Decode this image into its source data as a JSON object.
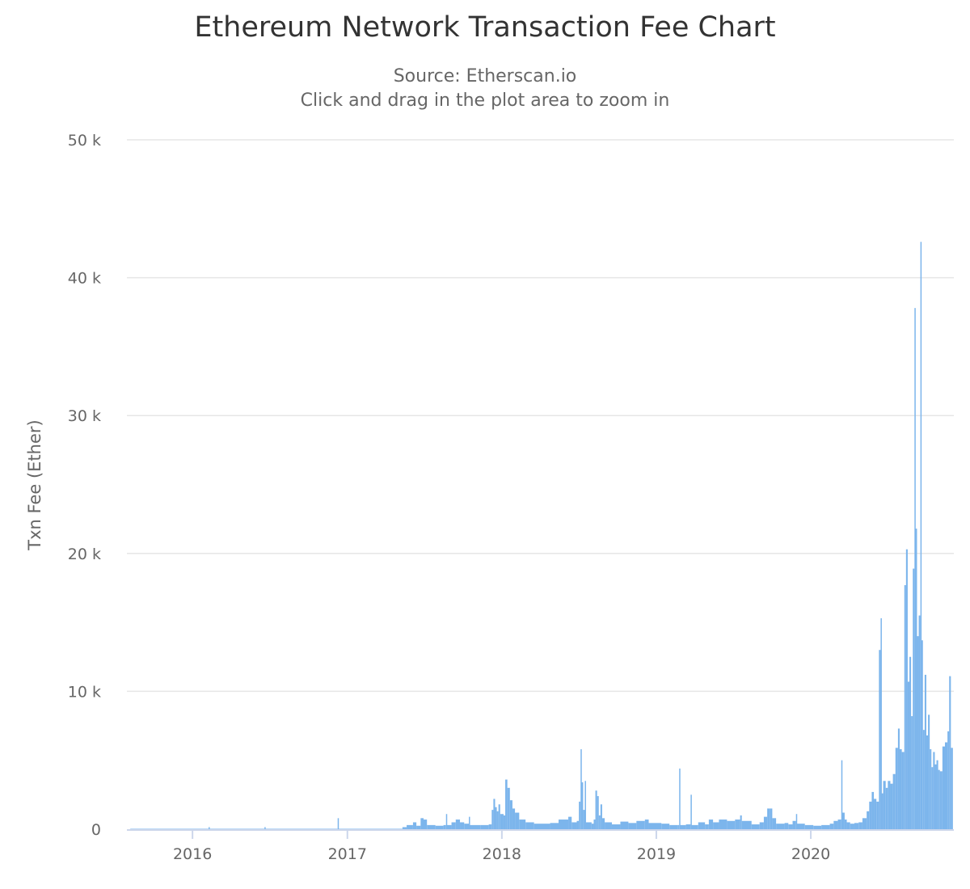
{
  "chart_data": {
    "type": "bar",
    "title": "Ethereum Network Transaction Fee Chart",
    "subtitle": "Source: Etherscan.io",
    "subtitle2": "Click and drag in the plot area to zoom in",
    "xlabel": "",
    "ylabel": "Txn Fee (Ether)",
    "xlim": [
      "2015-07-30",
      "2020-12-04"
    ],
    "ylim": [
      0,
      50000
    ],
    "x_ticks": [
      {
        "label": "2016",
        "date": "2016-01-01"
      },
      {
        "label": "2017",
        "date": "2017-01-01"
      },
      {
        "label": "2018",
        "date": "2018-01-01"
      },
      {
        "label": "2019",
        "date": "2019-01-01"
      },
      {
        "label": "2020",
        "date": "2020-01-01"
      }
    ],
    "y_ticks": [
      {
        "label": "0",
        "value": 0
      },
      {
        "label": "10 k",
        "value": 10000
      },
      {
        "label": "20 k",
        "value": 20000
      },
      {
        "label": "30 k",
        "value": 30000
      },
      {
        "label": "40 k",
        "value": 40000
      },
      {
        "label": "50 k",
        "value": 50000
      }
    ],
    "grid": true,
    "legend": "none",
    "color": "#7cb5ec",
    "points": [
      [
        "2015-08-07",
        30
      ],
      [
        "2016-02-08",
        150
      ],
      [
        "2016-02-10",
        30
      ],
      [
        "2016-06-19",
        150
      ],
      [
        "2016-06-21",
        30
      ],
      [
        "2016-12-09",
        800
      ],
      [
        "2016-12-11",
        30
      ],
      [
        "2017-05-11",
        150
      ],
      [
        "2017-05-21",
        300
      ],
      [
        "2017-06-05",
        500
      ],
      [
        "2017-06-13",
        250
      ],
      [
        "2017-06-23",
        800
      ],
      [
        "2017-06-30",
        700
      ],
      [
        "2017-07-08",
        300
      ],
      [
        "2017-07-28",
        250
      ],
      [
        "2017-08-16",
        300
      ],
      [
        "2017-08-22",
        1100
      ],
      [
        "2017-08-24",
        300
      ],
      [
        "2017-09-04",
        500
      ],
      [
        "2017-09-14",
        700
      ],
      [
        "2017-09-24",
        500
      ],
      [
        "2017-10-04",
        400
      ],
      [
        "2017-10-15",
        900
      ],
      [
        "2017-10-17",
        300
      ],
      [
        "2017-11-11",
        300
      ],
      [
        "2017-12-01",
        350
      ],
      [
        "2017-12-08",
        1400
      ],
      [
        "2017-12-12",
        2200
      ],
      [
        "2017-12-16",
        1600
      ],
      [
        "2017-12-20",
        1300
      ],
      [
        "2017-12-24",
        1800
      ],
      [
        "2017-12-28",
        1100
      ],
      [
        "2018-01-05",
        1000
      ],
      [
        "2018-01-09",
        3600
      ],
      [
        "2018-01-14",
        3000
      ],
      [
        "2018-01-20",
        2100
      ],
      [
        "2018-01-26",
        1500
      ],
      [
        "2018-02-01",
        1200
      ],
      [
        "2018-02-11",
        700
      ],
      [
        "2018-02-26",
        500
      ],
      [
        "2018-03-18",
        400
      ],
      [
        "2018-04-25",
        450
      ],
      [
        "2018-05-15",
        700
      ],
      [
        "2018-06-07",
        900
      ],
      [
        "2018-06-15",
        500
      ],
      [
        "2018-06-27",
        600
      ],
      [
        "2018-07-02",
        2000
      ],
      [
        "2018-07-06",
        5800
      ],
      [
        "2018-07-08",
        3400
      ],
      [
        "2018-07-12",
        1400
      ],
      [
        "2018-07-16",
        3500
      ],
      [
        "2018-07-18",
        500
      ],
      [
        "2018-08-01",
        400
      ],
      [
        "2018-08-06",
        700
      ],
      [
        "2018-08-10",
        2800
      ],
      [
        "2018-08-14",
        2400
      ],
      [
        "2018-08-18",
        1000
      ],
      [
        "2018-08-22",
        1800
      ],
      [
        "2018-08-26",
        800
      ],
      [
        "2018-09-01",
        500
      ],
      [
        "2018-09-18",
        350
      ],
      [
        "2018-10-08",
        550
      ],
      [
        "2018-10-27",
        450
      ],
      [
        "2018-11-15",
        600
      ],
      [
        "2018-12-05",
        700
      ],
      [
        "2018-12-14",
        450
      ],
      [
        "2019-01-13",
        400
      ],
      [
        "2019-02-01",
        300
      ],
      [
        "2019-02-20",
        300
      ],
      [
        "2019-02-24",
        4400
      ],
      [
        "2019-02-26",
        300
      ],
      [
        "2019-03-12",
        350
      ],
      [
        "2019-03-23",
        2500
      ],
      [
        "2019-03-25",
        300
      ],
      [
        "2019-04-10",
        500
      ],
      [
        "2019-04-26",
        350
      ],
      [
        "2019-05-05",
        700
      ],
      [
        "2019-05-15",
        500
      ],
      [
        "2019-05-29",
        700
      ],
      [
        "2019-06-17",
        600
      ],
      [
        "2019-07-06",
        700
      ],
      [
        "2019-07-18",
        1000
      ],
      [
        "2019-07-22",
        600
      ],
      [
        "2019-08-14",
        350
      ],
      [
        "2019-09-02",
        500
      ],
      [
        "2019-09-12",
        900
      ],
      [
        "2019-09-20",
        1500
      ],
      [
        "2019-09-26",
        1500
      ],
      [
        "2019-10-02",
        800
      ],
      [
        "2019-10-11",
        400
      ],
      [
        "2019-10-31",
        450
      ],
      [
        "2019-11-09",
        350
      ],
      [
        "2019-11-19",
        600
      ],
      [
        "2019-11-27",
        1100
      ],
      [
        "2019-11-29",
        400
      ],
      [
        "2019-12-18",
        300
      ],
      [
        "2020-01-07",
        250
      ],
      [
        "2020-01-26",
        300
      ],
      [
        "2020-02-15",
        400
      ],
      [
        "2020-02-24",
        600
      ],
      [
        "2020-03-05",
        700
      ],
      [
        "2020-03-13",
        5000
      ],
      [
        "2020-03-15",
        1200
      ],
      [
        "2020-03-21",
        700
      ],
      [
        "2020-03-26",
        500
      ],
      [
        "2020-04-03",
        400
      ],
      [
        "2020-04-13",
        450
      ],
      [
        "2020-04-23",
        500
      ],
      [
        "2020-05-02",
        800
      ],
      [
        "2020-05-12",
        1300
      ],
      [
        "2020-05-18",
        2000
      ],
      [
        "2020-05-24",
        2700
      ],
      [
        "2020-05-29",
        2200
      ],
      [
        "2020-06-04",
        2000
      ],
      [
        "2020-06-10",
        13000
      ],
      [
        "2020-06-14",
        15300
      ],
      [
        "2020-06-16",
        2600
      ],
      [
        "2020-06-20",
        3500
      ],
      [
        "2020-06-26",
        3000
      ],
      [
        "2020-07-01",
        3500
      ],
      [
        "2020-07-07",
        3300
      ],
      [
        "2020-07-13",
        4000
      ],
      [
        "2020-07-19",
        5900
      ],
      [
        "2020-07-25",
        7300
      ],
      [
        "2020-07-29",
        5800
      ],
      [
        "2020-08-03",
        5600
      ],
      [
        "2020-08-09",
        17700
      ],
      [
        "2020-08-13",
        20300
      ],
      [
        "2020-08-17",
        10700
      ],
      [
        "2020-08-21",
        12500
      ],
      [
        "2020-08-25",
        8200
      ],
      [
        "2020-08-29",
        18900
      ],
      [
        "2020-09-02",
        37800
      ],
      [
        "2020-09-04",
        21800
      ],
      [
        "2020-09-08",
        14000
      ],
      [
        "2020-09-12",
        15500
      ],
      [
        "2020-09-16",
        42600
      ],
      [
        "2020-09-18",
        13700
      ],
      [
        "2020-09-22",
        7200
      ],
      [
        "2020-09-26",
        11200
      ],
      [
        "2020-09-30",
        6800
      ],
      [
        "2020-10-04",
        8300
      ],
      [
        "2020-10-08",
        5800
      ],
      [
        "2020-10-12",
        4500
      ],
      [
        "2020-10-16",
        5600
      ],
      [
        "2020-10-20",
        4700
      ],
      [
        "2020-10-24",
        5000
      ],
      [
        "2020-10-28",
        4300
      ],
      [
        "2020-11-01",
        4200
      ],
      [
        "2020-11-07",
        6000
      ],
      [
        "2020-11-13",
        6300
      ],
      [
        "2020-11-19",
        7100
      ],
      [
        "2020-11-23",
        11100
      ],
      [
        "2020-11-27",
        5900
      ]
    ]
  }
}
